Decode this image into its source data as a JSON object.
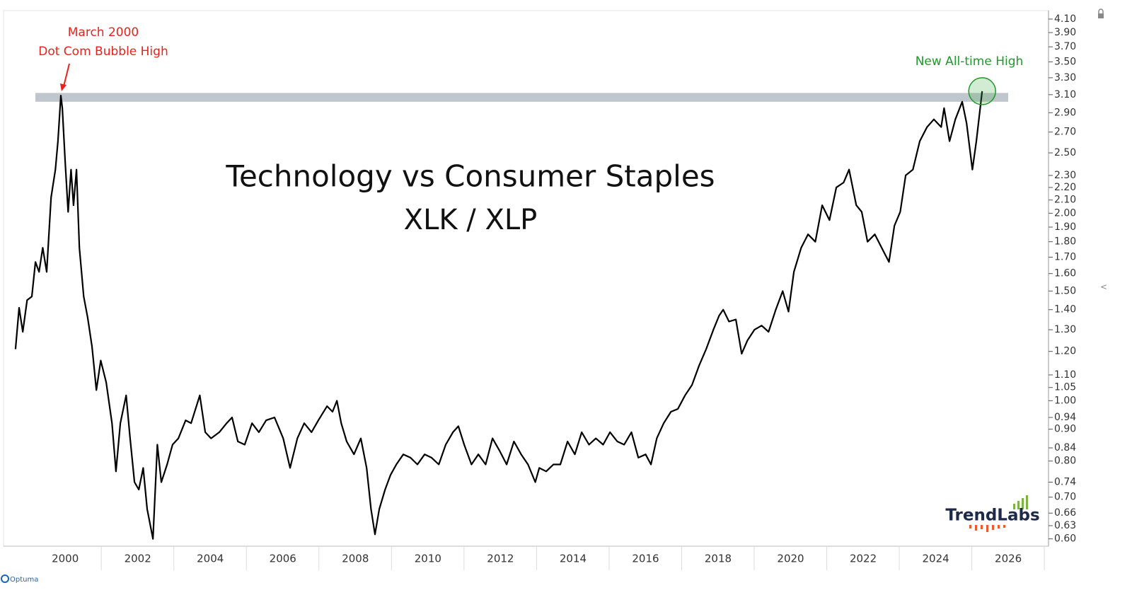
{
  "chart_data": {
    "type": "line",
    "title": "Technology vs Consumer Staples",
    "subtitle": "XLK / XLP",
    "annotations": [
      "March 2000",
      "Dot Com Bubble High",
      "New All-time High"
    ],
    "logo": "TrendLabs",
    "source": "Optuma",
    "log_scale": true,
    "color": "#000000",
    "band": [
      3.02,
      3.12
    ],
    "xlim": [
      1998.3,
      2027.07
    ],
    "xticks": [
      2000,
      2002,
      2004,
      2006,
      2008,
      2010,
      2012,
      2014,
      2016,
      2018,
      2020,
      2022,
      2024,
      2026
    ],
    "ylim": [
      0.584,
      4.23
    ],
    "yticks": [
      {
        "value": 4.1,
        "label": "4.10"
      },
      {
        "value": 3.9,
        "label": "3.90"
      },
      {
        "value": 3.7,
        "label": "3.70"
      },
      {
        "value": 3.5,
        "label": "3.50"
      },
      {
        "value": 3.3,
        "label": "3.30"
      },
      {
        "value": 3.1,
        "label": "3.10"
      },
      {
        "value": 2.9,
        "label": "2.90"
      },
      {
        "value": 2.7,
        "label": "2.70"
      },
      {
        "value": 2.5,
        "label": "2.50"
      },
      {
        "value": 2.3,
        "label": "2.30"
      },
      {
        "value": 2.2,
        "label": "2.20"
      },
      {
        "value": 2.1,
        "label": "2.10"
      },
      {
        "value": 2,
        "label": "2.00"
      },
      {
        "value": 1.9,
        "label": "1.90"
      },
      {
        "value": 1.8,
        "label": "1.80"
      },
      {
        "value": 1.7,
        "label": "1.70"
      },
      {
        "value": 1.6,
        "label": "1.60"
      },
      {
        "value": 1.5,
        "label": "1.50"
      },
      {
        "value": 1.4,
        "label": "1.40"
      },
      {
        "value": 1.3,
        "label": "1.30"
      },
      {
        "value": 1.2,
        "label": "1.20"
      },
      {
        "value": 1.1,
        "label": "1.10"
      },
      1.05,
      {
        "value": 1,
        "label": "1.00"
      },
      0.94,
      {
        "value": 0.9,
        "label": "0.90"
      },
      0.84,
      {
        "value": 0.8,
        "label": "0.80"
      },
      0.74,
      {
        "value": 0.7,
        "label": "0.70"
      },
      0.66,
      0.63,
      {
        "value": 0.6,
        "label": "0.60"
      }
    ],
    "x": [
      1998.63,
      1998.73,
      1998.83,
      1998.95,
      1999.08,
      1999.18,
      1999.28,
      1999.38,
      1999.49,
      1999.61,
      1999.73,
      1999.8,
      1999.88,
      1999.92,
      2000.0,
      2000.08,
      2000.16,
      2000.23,
      2000.31,
      2000.39,
      2000.51,
      2000.62,
      2000.74,
      2000.86,
      2000.98,
      2001.13,
      2001.29,
      2001.4,
      2001.52,
      2001.68,
      2001.79,
      2001.91,
      2002.03,
      2002.15,
      2002.26,
      2002.42,
      2002.54,
      2002.65,
      2002.81,
      2002.96,
      2003.12,
      2003.32,
      2003.47,
      2003.71,
      2003.86,
      2004.02,
      2004.25,
      2004.45,
      2004.6,
      2004.76,
      2004.95,
      2005.15,
      2005.34,
      2005.54,
      2005.77,
      2006.01,
      2006.2,
      2006.4,
      2006.59,
      2006.79,
      2006.98,
      2007.22,
      2007.37,
      2007.49,
      2007.61,
      2007.76,
      2007.96,
      2008.15,
      2008.31,
      2008.43,
      2008.54,
      2008.66,
      2008.82,
      2008.97,
      2009.13,
      2009.32,
      2009.52,
      2009.71,
      2009.91,
      2010.1,
      2010.3,
      2010.49,
      2010.69,
      2010.84,
      2011.0,
      2011.2,
      2011.39,
      2011.59,
      2011.78,
      2011.98,
      2012.17,
      2012.37,
      2012.57,
      2012.76,
      2012.96,
      2013.07,
      2013.26,
      2013.46,
      2013.65,
      2013.85,
      2014.05,
      2014.24,
      2014.44,
      2014.63,
      2014.83,
      2015.02,
      2015.22,
      2015.41,
      2015.61,
      2015.8,
      2016.0,
      2016.15,
      2016.31,
      2016.5,
      2016.7,
      2016.89,
      2017.09,
      2017.28,
      2017.48,
      2017.67,
      2017.87,
      2018.03,
      2018.14,
      2018.3,
      2018.49,
      2018.65,
      2018.81,
      2019.0,
      2019.2,
      2019.39,
      2019.59,
      2019.78,
      2019.94,
      2020.09,
      2020.29,
      2020.48,
      2020.68,
      2020.87,
      2021.07,
      2021.26,
      2021.46,
      2021.61,
      2021.81,
      2021.96,
      2022.12,
      2022.32,
      2022.51,
      2022.71,
      2022.86,
      2023.02,
      2023.17,
      2023.37,
      2023.56,
      2023.76,
      2023.95,
      2024.15,
      2024.23,
      2024.38,
      2024.54,
      2024.73,
      2024.85,
      2025.01,
      2025.12,
      2025.28
    ],
    "values": [
      1.21,
      1.41,
      1.29,
      1.45,
      1.47,
      1.67,
      1.61,
      1.76,
      1.61,
      2.12,
      2.35,
      2.61,
      3.09,
      2.95,
      2.41,
      2.01,
      2.35,
      2.06,
      2.35,
      1.76,
      1.47,
      1.36,
      1.22,
      1.04,
      1.16,
      1.07,
      0.92,
      0.77,
      0.92,
      1.02,
      0.87,
      0.74,
      0.72,
      0.78,
      0.67,
      0.6,
      0.85,
      0.74,
      0.79,
      0.85,
      0.87,
      0.93,
      0.92,
      1.02,
      0.89,
      0.87,
      0.89,
      0.92,
      0.94,
      0.86,
      0.85,
      0.92,
      0.89,
      0.93,
      0.94,
      0.87,
      0.78,
      0.87,
      0.92,
      0.89,
      0.93,
      0.98,
      0.96,
      1.0,
      0.92,
      0.86,
      0.82,
      0.87,
      0.78,
      0.67,
      0.61,
      0.67,
      0.72,
      0.76,
      0.79,
      0.82,
      0.81,
      0.79,
      0.82,
      0.81,
      0.79,
      0.85,
      0.89,
      0.91,
      0.85,
      0.79,
      0.82,
      0.79,
      0.87,
      0.83,
      0.79,
      0.86,
      0.82,
      0.79,
      0.74,
      0.78,
      0.77,
      0.79,
      0.79,
      0.86,
      0.82,
      0.89,
      0.85,
      0.87,
      0.85,
      0.89,
      0.86,
      0.85,
      0.89,
      0.81,
      0.82,
      0.79,
      0.87,
      0.92,
      0.96,
      0.97,
      1.02,
      1.06,
      1.14,
      1.21,
      1.3,
      1.37,
      1.4,
      1.34,
      1.35,
      1.19,
      1.25,
      1.3,
      1.32,
      1.29,
      1.4,
      1.5,
      1.39,
      1.61,
      1.76,
      1.85,
      1.8,
      2.06,
      1.95,
      2.2,
      2.24,
      2.35,
      2.06,
      2.01,
      1.8,
      1.85,
      1.76,
      1.67,
      1.91,
      2.01,
      2.3,
      2.35,
      2.61,
      2.75,
      2.83,
      2.75,
      2.95,
      2.61,
      2.83,
      3.02,
      2.79,
      2.35,
      2.61,
      3.14
    ]
  }
}
